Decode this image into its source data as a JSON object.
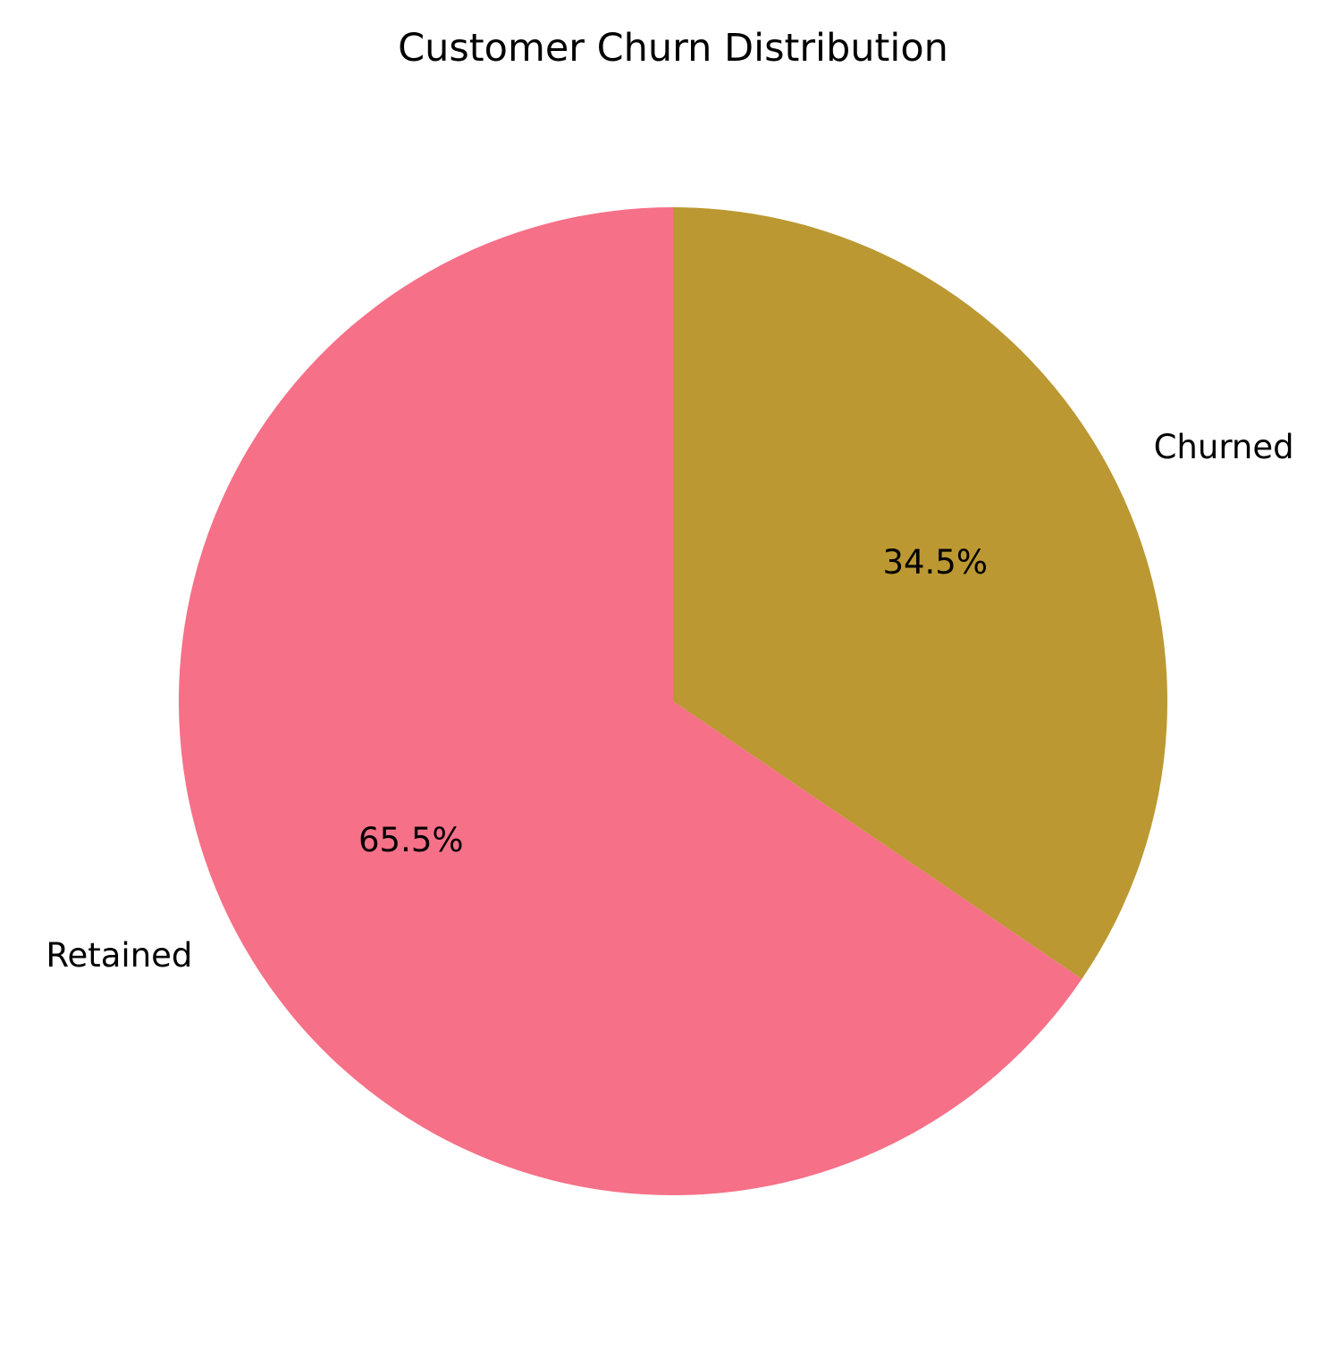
{
  "chart_data": {
    "type": "pie",
    "title": "Customer Churn Distribution",
    "start_angle_deg": 90,
    "direction": "counterclockwise",
    "slices": [
      {
        "label": "Retained",
        "value": 65.5,
        "pct_label": "65.5%",
        "color": "#F67088"
      },
      {
        "label": "Churned",
        "value": 34.5,
        "pct_label": "34.5%",
        "color": "#BB9832"
      }
    ]
  }
}
